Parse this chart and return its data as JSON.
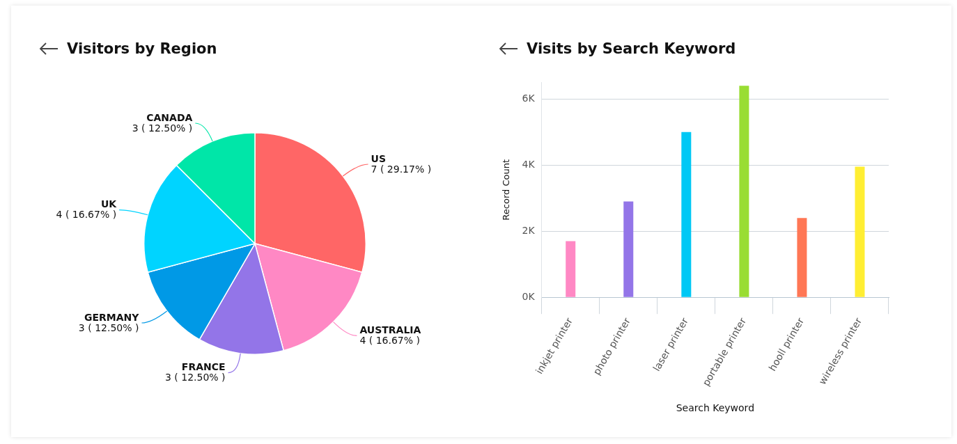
{
  "chart_data": [
    {
      "type": "pie",
      "title": "Visitors by Region",
      "categories": [
        "US",
        "AUSTRALIA",
        "FRANCE",
        "GERMANY",
        "UK",
        "CANADA"
      ],
      "values": [
        7,
        4,
        3,
        3,
        4,
        3
      ],
      "colors": [
        "#ff6666",
        "#ff88c4",
        "#9375e8",
        "#0099e6",
        "#00d4ff",
        "#00e6a8"
      ],
      "value_labels": [
        "7 ( 29.17% )",
        "4 ( 16.67% )",
        "3 ( 12.50% )",
        "3 ( 12.50% )",
        "4 ( 16.67% )",
        "3 ( 12.50% )"
      ],
      "legend": false
    },
    {
      "type": "bar",
      "title": "Visits by Search Keyword",
      "xlabel": "Search Keyword",
      "ylabel": "Record Count",
      "categories": [
        "inkjet printer",
        "photo printer",
        "laser printer",
        "portable printer",
        "hooll printer",
        "wireless printer"
      ],
      "values": [
        1700,
        2900,
        5000,
        6400,
        2400,
        3950
      ],
      "colors": [
        "#ff88c4",
        "#9375e8",
        "#00c8f5",
        "#99dd33",
        "#ff7755",
        "#ffee33"
      ],
      "ylim": [
        0,
        6500
      ],
      "yticks": [
        {
          "value": 0,
          "label": "0K"
        },
        {
          "value": 2000,
          "label": "2K"
        },
        {
          "value": 4000,
          "label": "4K"
        },
        {
          "value": 6000,
          "label": "6K"
        }
      ],
      "grid": "y",
      "legend": false
    }
  ]
}
